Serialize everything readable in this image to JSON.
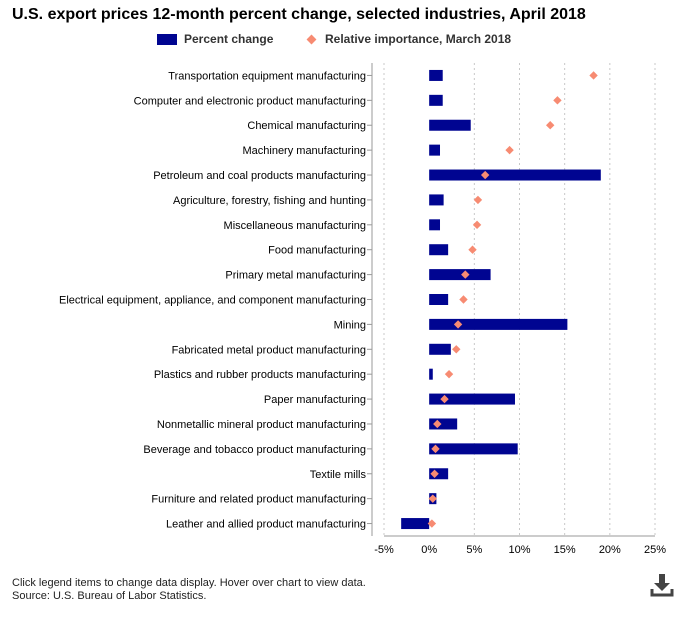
{
  "title": "U.S. export prices 12-month percent change, selected industries, April 2018",
  "legend": {
    "bar_label": "Percent change",
    "diamond_label": "Relative importance, March 2018"
  },
  "colors": {
    "bar": "#000591",
    "diamond": "#f78b72",
    "grid": "#c8c8c8",
    "axis": "#000000"
  },
  "footer": {
    "note": "Click legend items to change data display. Hover over chart to view data.",
    "source": "Source: U.S. Bureau of Labor Statistics."
  },
  "download_icon": "download-arrow-icon",
  "chart_data": {
    "type": "bar",
    "orientation": "horizontal",
    "title": "U.S. export prices 12-month percent change, selected industries, April 2018",
    "xlim": [
      -5,
      25
    ],
    "xticks": [
      -5,
      0,
      5,
      10,
      15,
      20,
      25
    ],
    "xtick_labels": [
      "-5%",
      "0%",
      "5%",
      "10%",
      "15%",
      "20%",
      "25%"
    ],
    "grid": "vertical dotted",
    "legend_position": "top-center",
    "categories": [
      "Transportation equipment manufacturing",
      "Computer and electronic product manufacturing",
      "Chemical manufacturing",
      "Machinery manufacturing",
      "Petroleum and coal products manufacturing",
      "Agriculture, forestry, fishing and hunting",
      "Miscellaneous manufacturing",
      "Food manufacturing",
      "Primary metal manufacturing",
      "Electrical equipment, appliance, and component manufacturing",
      "Mining",
      "Fabricated metal product manufacturing",
      "Plastics and rubber products manufacturing",
      "Paper manufacturing",
      "Nonmetallic mineral product manufacturing",
      "Beverage and tobacco product manufacturing",
      "Textile mills",
      "Furniture and related product manufacturing",
      "Leather and allied product manufacturing"
    ],
    "series": [
      {
        "name": "Percent change",
        "marker": "bar",
        "values": [
          1.5,
          1.5,
          4.6,
          1.2,
          19.0,
          1.6,
          1.2,
          2.1,
          6.8,
          2.1,
          15.3,
          2.4,
          0.4,
          9.5,
          3.1,
          9.8,
          2.1,
          0.8,
          -3.1
        ]
      },
      {
        "name": "Relative importance, March 2018",
        "marker": "diamond",
        "values": [
          18.2,
          14.2,
          13.4,
          8.9,
          6.2,
          5.4,
          5.3,
          4.8,
          4.0,
          3.8,
          3.2,
          3.0,
          2.2,
          1.7,
          0.9,
          0.7,
          0.6,
          0.4,
          0.3
        ]
      }
    ]
  }
}
